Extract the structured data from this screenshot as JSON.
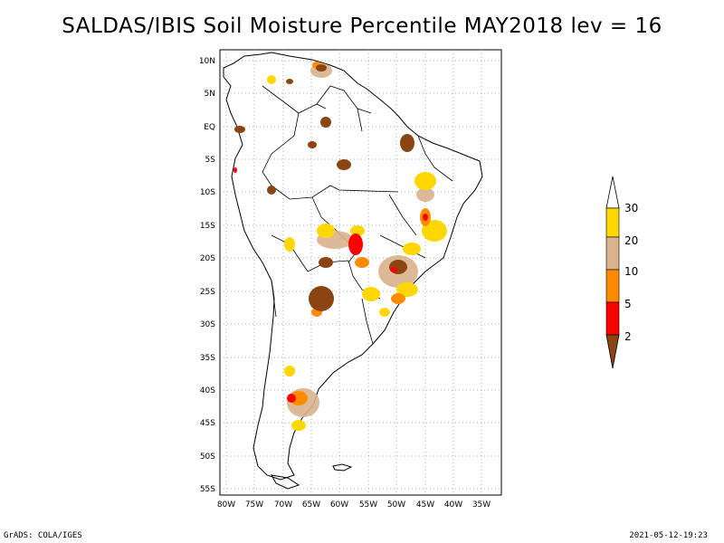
{
  "title": "SALDAS/IBIS Soil Moisture Percentile MAY2018 lev = 16",
  "footer": {
    "left": "GrADS: COLA/IGES",
    "right": "2021-05-12-19:23"
  },
  "map": {
    "lat_labels": [
      "10N",
      "5N",
      "EQ",
      "5S",
      "10S",
      "15S",
      "20S",
      "25S",
      "30S",
      "35S",
      "40S",
      "45S",
      "50S",
      "55S"
    ],
    "lon_labels": [
      "80W",
      "75W",
      "70W",
      "65W",
      "60W",
      "55W",
      "50W",
      "45W",
      "40W",
      "35W"
    ],
    "grid": true
  },
  "legend": {
    "labels": [
      "30",
      "20",
      "10",
      "5",
      "2"
    ],
    "colors": {
      "above30": "#ffffff",
      "c20_30": "#ffd700",
      "c10_20": "#d9b38c",
      "c5_10": "#ff8c00",
      "c2_5": "#ff0000",
      "below2": "#8b4513"
    }
  }
}
